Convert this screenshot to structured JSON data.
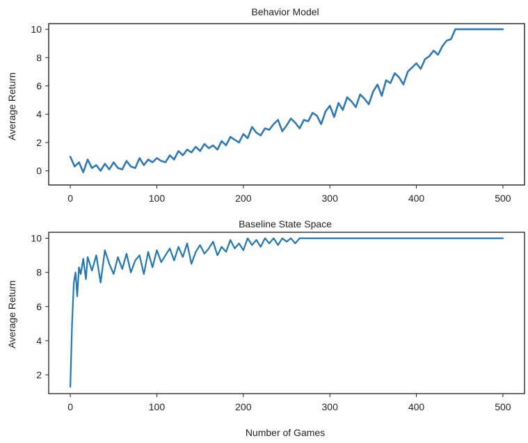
{
  "chart_data": [
    {
      "type": "line",
      "title": "Behavior Model",
      "xlabel": "",
      "ylabel": "Average Return",
      "xlim": [
        -25,
        525
      ],
      "ylim": [
        -1.0,
        10.4
      ],
      "xticks": [
        0,
        100,
        200,
        300,
        400,
        500
      ],
      "yticks": [
        0,
        2,
        4,
        6,
        8,
        10
      ],
      "grid": false,
      "color": "#2d78b5",
      "series": [
        {
          "name": "",
          "x": [
            0,
            5,
            10,
            15,
            20,
            25,
            30,
            35,
            40,
            45,
            50,
            55,
            60,
            65,
            70,
            75,
            80,
            85,
            90,
            95,
            100,
            105,
            110,
            115,
            120,
            125,
            130,
            135,
            140,
            145,
            150,
            155,
            160,
            165,
            170,
            175,
            180,
            185,
            190,
            195,
            200,
            205,
            210,
            215,
            220,
            225,
            230,
            235,
            240,
            245,
            250,
            255,
            260,
            265,
            270,
            275,
            280,
            285,
            290,
            295,
            300,
            305,
            310,
            315,
            320,
            325,
            330,
            335,
            340,
            345,
            350,
            355,
            360,
            365,
            370,
            375,
            380,
            385,
            390,
            395,
            400,
            405,
            410,
            415,
            420,
            425,
            430,
            435,
            440,
            445,
            450,
            455,
            460,
            465,
            470,
            475,
            480,
            485,
            490,
            495,
            500
          ],
          "y": [
            1.0,
            0.3,
            0.6,
            -0.1,
            0.8,
            0.2,
            0.4,
            0.0,
            0.5,
            0.1,
            0.6,
            0.2,
            0.1,
            0.7,
            0.3,
            0.2,
            0.9,
            0.4,
            0.8,
            0.6,
            0.9,
            0.7,
            0.6,
            1.1,
            0.8,
            1.4,
            1.1,
            1.5,
            1.3,
            1.7,
            1.4,
            1.9,
            1.6,
            1.8,
            1.5,
            2.1,
            1.8,
            2.4,
            2.2,
            2.0,
            2.6,
            2.3,
            3.1,
            2.7,
            2.5,
            3.0,
            2.9,
            3.3,
            3.6,
            2.8,
            3.2,
            3.7,
            3.4,
            3.0,
            3.6,
            3.5,
            4.1,
            3.9,
            3.3,
            4.2,
            4.6,
            3.8,
            4.8,
            4.3,
            5.2,
            4.9,
            4.5,
            5.4,
            5.1,
            4.7,
            5.6,
            6.1,
            5.3,
            6.4,
            6.2,
            6.9,
            6.6,
            6.1,
            7.0,
            7.3,
            7.6,
            7.2,
            7.9,
            8.1,
            8.5,
            8.2,
            8.8,
            9.2,
            9.3,
            10.0,
            10.0,
            10.0,
            10.0,
            10.0,
            10.0,
            10.0,
            10.0,
            10.0,
            10.0,
            10.0,
            10.0
          ]
        }
      ]
    },
    {
      "type": "line",
      "title": "Baseline State Space",
      "xlabel": "Number of Games",
      "ylabel": "Average Return",
      "xlim": [
        -25,
        525
      ],
      "ylim": [
        0.9,
        10.35
      ],
      "xticks": [
        0,
        100,
        200,
        300,
        400,
        500
      ],
      "yticks": [
        2,
        4,
        6,
        8,
        10
      ],
      "grid": false,
      "color": "#1f77b4",
      "series": [
        {
          "name": "",
          "x": [
            0,
            2,
            4,
            6,
            8,
            10,
            12,
            15,
            18,
            20,
            25,
            30,
            35,
            40,
            45,
            50,
            55,
            60,
            65,
            70,
            75,
            80,
            85,
            90,
            95,
            100,
            105,
            110,
            115,
            120,
            125,
            130,
            135,
            140,
            145,
            150,
            155,
            160,
            165,
            170,
            175,
            180,
            185,
            190,
            195,
            200,
            205,
            210,
            215,
            220,
            225,
            230,
            235,
            240,
            245,
            250,
            255,
            260,
            265,
            270,
            275,
            280,
            300,
            350,
            400,
            450,
            500
          ],
          "y": [
            1.3,
            5.0,
            7.4,
            8.0,
            6.6,
            8.3,
            7.9,
            8.8,
            7.6,
            8.9,
            8.1,
            9.0,
            7.4,
            9.3,
            8.5,
            7.9,
            8.9,
            8.2,
            9.1,
            8.0,
            8.7,
            9.0,
            7.9,
            9.2,
            8.3,
            9.3,
            8.6,
            9.0,
            9.4,
            8.7,
            9.5,
            8.9,
            9.7,
            8.5,
            9.2,
            9.6,
            9.1,
            9.4,
            9.8,
            9.0,
            9.5,
            9.2,
            9.9,
            9.4,
            9.7,
            9.3,
            10.0,
            9.6,
            9.9,
            9.5,
            10.0,
            9.7,
            10.0,
            9.6,
            10.0,
            9.8,
            10.0,
            9.7,
            10.0,
            10.0,
            10.0,
            10.0,
            10.0,
            10.0,
            10.0,
            10.0,
            10.0
          ]
        }
      ]
    }
  ]
}
